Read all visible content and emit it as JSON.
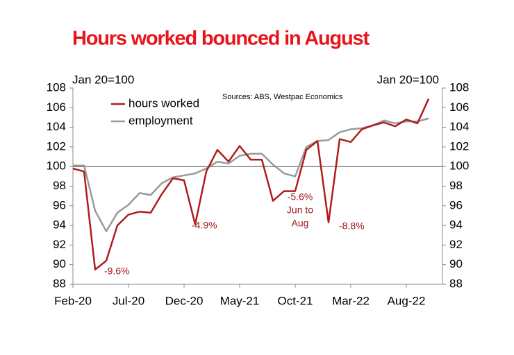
{
  "chart_data": {
    "type": "line",
    "title": "Hours worked bounced in August",
    "source": "Sources: ABS, Westpac Economics",
    "ylabel": "Jan 20=100",
    "y2label": "Jan 20=100",
    "categories": [
      "Feb-20",
      null,
      null,
      null,
      null,
      "Jul-20",
      null,
      null,
      null,
      null,
      "Dec-20",
      null,
      null,
      null,
      null,
      "May-21",
      null,
      null,
      null,
      null,
      "Oct-21",
      null,
      null,
      null,
      null,
      "Mar-22",
      null,
      null,
      null,
      null,
      "Aug-22",
      null,
      null
    ],
    "series": [
      {
        "name": "hours worked",
        "color": "#b01c1c",
        "values": [
          99.8,
          99.5,
          89.5,
          90.4,
          94.0,
          95.1,
          95.4,
          95.3,
          97.2,
          98.8,
          98.6,
          94.1,
          99.5,
          101.7,
          100.5,
          102.1,
          100.7,
          100.7,
          96.5,
          97.5,
          97.5,
          101.7,
          102.6,
          94.3,
          102.8,
          102.5,
          103.8,
          104.2,
          104.5,
          104.1,
          104.8,
          104.4,
          106.9
        ]
      },
      {
        "name": "employment",
        "color": "#9a9a9a",
        "values": [
          100.1,
          100.1,
          95.5,
          93.4,
          95.3,
          96.1,
          97.3,
          97.1,
          98.3,
          98.9,
          99.1,
          99.3,
          99.8,
          100.5,
          100.3,
          101.1,
          101.3,
          101.3,
          100.2,
          99.3,
          99.0,
          102.0,
          102.6,
          102.7,
          103.5,
          103.8,
          103.9,
          104.2,
          104.7,
          104.4,
          104.6,
          104.6,
          104.9
        ]
      }
    ],
    "reference_line": 100,
    "annotations": [
      [
        "-9.6%"
      ],
      [
        "-4.9%"
      ],
      [
        "-5.6%",
        "Jun to",
        "Aug"
      ],
      [
        "-8.8%"
      ]
    ],
    "ylim": [
      88,
      108
    ],
    "yticks": [
      88,
      90,
      92,
      94,
      96,
      98,
      100,
      102,
      104,
      106,
      108
    ],
    "y2lim": [
      88,
      108
    ],
    "y2ticks": [
      88,
      90,
      92,
      94,
      96,
      98,
      100,
      102,
      104,
      106,
      108
    ],
    "legend": "upper left"
  }
}
